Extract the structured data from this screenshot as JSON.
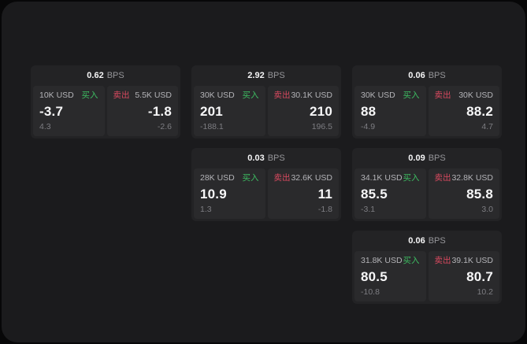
{
  "labels": {
    "bps_unit": "BPS",
    "buy": "买入",
    "sell": "卖出"
  },
  "colors": {
    "panel_bg": "#1b1b1d",
    "card_bg": "#232325",
    "tile_bg": "#2a2a2c",
    "buy_green": "#3dbd62",
    "sell_red": "#d8495f"
  },
  "cards": [
    {
      "bps": "0.62",
      "buy": {
        "amount": "10K USD",
        "value": "-3.7",
        "sub": "4.3"
      },
      "sell": {
        "amount": "5.5K USD",
        "value": "-1.8",
        "sub": "-2.6"
      }
    },
    {
      "bps": "2.92",
      "buy": {
        "amount": "30K USD",
        "value": "201",
        "sub": "-188.1"
      },
      "sell": {
        "amount": "30.1K USD",
        "value": "210",
        "sub": "196.5"
      }
    },
    {
      "bps": "0.06",
      "buy": {
        "amount": "30K USD",
        "value": "88",
        "sub": "-4.9"
      },
      "sell": {
        "amount": "30K USD",
        "value": "88.2",
        "sub": "4.7"
      }
    },
    {
      "bps": "0.03",
      "buy": {
        "amount": "28K USD",
        "value": "10.9",
        "sub": "1.3"
      },
      "sell": {
        "amount": "32.6K USD",
        "value": "11",
        "sub": "-1.8"
      }
    },
    {
      "bps": "0.09",
      "buy": {
        "amount": "34.1K USD",
        "value": "85.5",
        "sub": "-3.1"
      },
      "sell": {
        "amount": "32.8K USD",
        "value": "85.8",
        "sub": "3.0"
      }
    },
    {
      "bps": "0.06",
      "buy": {
        "amount": "31.8K USD",
        "value": "80.5",
        "sub": "-10.8"
      },
      "sell": {
        "amount": "39.1K USD",
        "value": "80.7",
        "sub": "10.2"
      }
    }
  ]
}
